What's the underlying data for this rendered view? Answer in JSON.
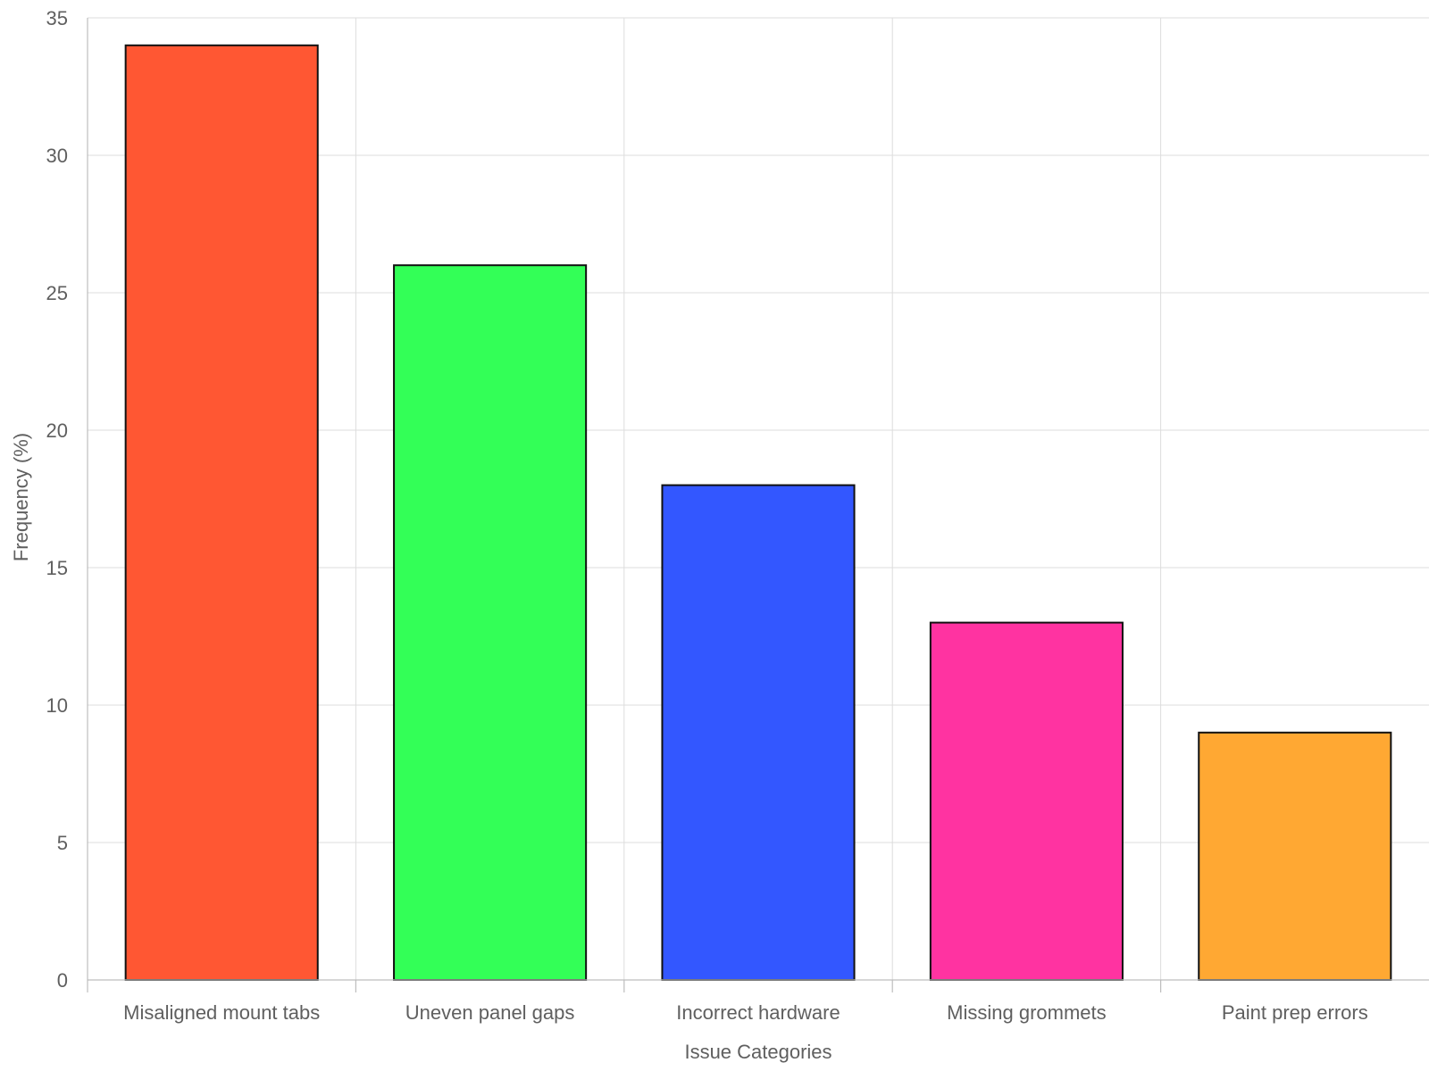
{
  "chart_data": {
    "type": "bar",
    "title": "",
    "xlabel": "Issue Categories",
    "ylabel": "Frequency (%)",
    "categories": [
      "Misaligned mount tabs",
      "Uneven panel gaps",
      "Incorrect hardware",
      "Missing grommets",
      "Paint prep errors"
    ],
    "values": [
      34,
      26,
      18,
      13,
      9
    ],
    "colors": [
      "#ff5733",
      "#33ff57",
      "#3357ff",
      "#ff33a1",
      "#ffa833"
    ],
    "bar_edge_color": "#111111",
    "ylim": [
      0,
      35
    ],
    "yticks": [
      "0",
      "5",
      "10",
      "15",
      "20",
      "25",
      "30",
      "35"
    ],
    "grid": true,
    "legend": "none"
  }
}
